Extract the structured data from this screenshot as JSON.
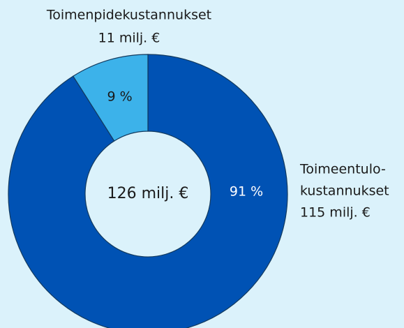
{
  "chart_data": {
    "type": "pie",
    "donut": true,
    "categories": [
      [
        "Toimeentulo-",
        "kustannukset"
      ],
      [
        "Toimenpidekustannukset"
      ]
    ],
    "amount_labels": [
      "115 milj. €",
      "11 milj. €"
    ],
    "values": [
      91,
      9
    ],
    "value_labels": [
      "91 %",
      "9 %"
    ],
    "colors": [
      "#0052b4",
      "#3cb2ea"
    ],
    "center_label": "126 milj. €"
  }
}
